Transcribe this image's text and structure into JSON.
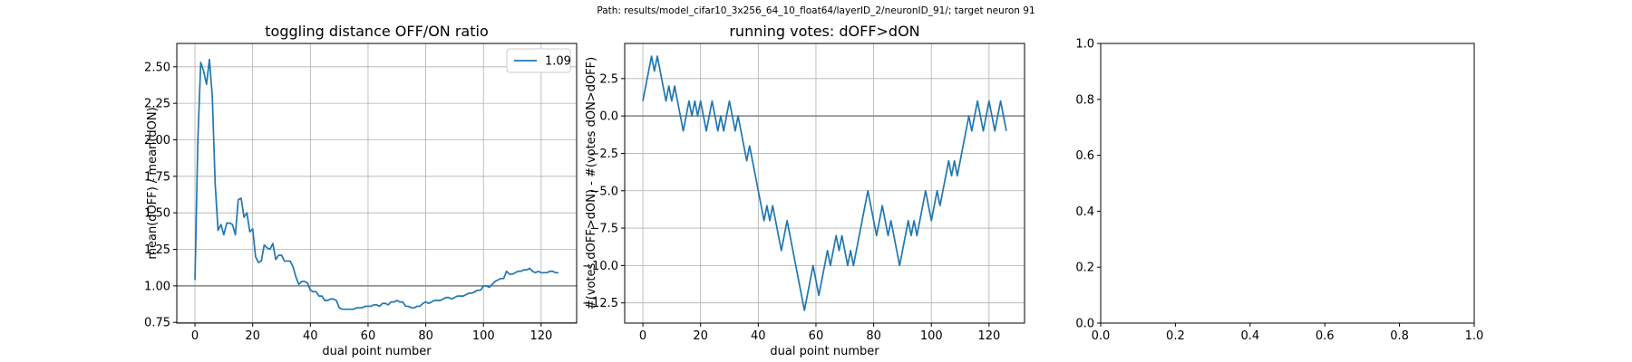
{
  "figure": {
    "suptitle": "Path: results/model_cifar10_3x256_64_10_float64/layerID_2/neuronID_91/; target neuron 91"
  },
  "colors": {
    "line": "#1f77b4",
    "refline": "#808080",
    "grid": "#b0b0b0"
  },
  "chart_data": [
    {
      "type": "line",
      "title": "toggling distance OFF/ON ratio",
      "xlabel": "dual point number",
      "ylabel": "mean(dOFF) / mean(dON)",
      "xlim": [
        -6.3,
        132.3
      ],
      "ylim": [
        0.745,
        2.66
      ],
      "xticks": [
        0,
        20,
        40,
        60,
        80,
        100,
        120
      ],
      "yticks": [
        0.75,
        1.0,
        1.25,
        1.5,
        1.75,
        2.0,
        2.25,
        2.5
      ],
      "ytick_labels": [
        "0.75",
        "1.00",
        "1.25",
        "1.50",
        "1.75",
        "2.00",
        "2.25",
        "2.50"
      ],
      "grid": true,
      "hline": 1.0,
      "legend": {
        "position": "top-right",
        "entries": [
          "1.09"
        ]
      },
      "series": [
        {
          "name": "1.09",
          "x": [
            0,
            1,
            2,
            3,
            4,
            5,
            6,
            7,
            8,
            9,
            10,
            11,
            12,
            13,
            14,
            15,
            16,
            17,
            18,
            19,
            20,
            21,
            22,
            23,
            24,
            25,
            26,
            27,
            28,
            29,
            30,
            31,
            32,
            33,
            34,
            35,
            36,
            37,
            38,
            39,
            40,
            41,
            42,
            43,
            44,
            45,
            46,
            47,
            48,
            49,
            50,
            51,
            52,
            53,
            54,
            55,
            56,
            57,
            58,
            59,
            60,
            61,
            62,
            63,
            64,
            65,
            66,
            67,
            68,
            69,
            70,
            71,
            72,
            73,
            74,
            75,
            76,
            77,
            78,
            79,
            80,
            81,
            82,
            83,
            84,
            85,
            86,
            87,
            88,
            89,
            90,
            91,
            92,
            93,
            94,
            95,
            96,
            97,
            98,
            99,
            100,
            101,
            102,
            103,
            104,
            105,
            106,
            107,
            108,
            109,
            110,
            111,
            112,
            113,
            114,
            115,
            116,
            117,
            118,
            119,
            120,
            121,
            122,
            123,
            124,
            125,
            126
          ],
          "y": [
            1.04,
            2.0,
            2.53,
            2.47,
            2.38,
            2.55,
            2.3,
            1.7,
            1.38,
            1.42,
            1.35,
            1.43,
            1.43,
            1.42,
            1.35,
            1.59,
            1.6,
            1.47,
            1.5,
            1.37,
            1.39,
            1.2,
            1.16,
            1.17,
            1.28,
            1.26,
            1.25,
            1.29,
            1.18,
            1.21,
            1.21,
            1.17,
            1.17,
            1.17,
            1.13,
            1.06,
            1.01,
            1.03,
            1.03,
            1.02,
            0.97,
            0.96,
            0.96,
            0.93,
            0.93,
            0.9,
            0.9,
            0.91,
            0.91,
            0.9,
            0.85,
            0.84,
            0.84,
            0.84,
            0.84,
            0.84,
            0.85,
            0.85,
            0.85,
            0.86,
            0.86,
            0.86,
            0.87,
            0.87,
            0.86,
            0.88,
            0.88,
            0.87,
            0.89,
            0.89,
            0.9,
            0.89,
            0.89,
            0.86,
            0.86,
            0.85,
            0.85,
            0.86,
            0.86,
            0.88,
            0.89,
            0.88,
            0.89,
            0.9,
            0.9,
            0.9,
            0.91,
            0.92,
            0.92,
            0.91,
            0.92,
            0.93,
            0.93,
            0.93,
            0.94,
            0.95,
            0.95,
            0.96,
            0.97,
            0.97,
            1.0,
            1.0,
            0.99,
            1.01,
            1.03,
            1.04,
            1.05,
            1.05,
            1.1,
            1.08,
            1.08,
            1.09,
            1.1,
            1.1,
            1.11,
            1.11,
            1.12,
            1.1,
            1.09,
            1.1,
            1.09,
            1.09,
            1.09,
            1.1,
            1.1,
            1.09,
            1.09
          ]
        }
      ]
    },
    {
      "type": "line",
      "title": "running votes: dOFF>dON",
      "xlabel": "dual point number",
      "ylabel": "#(votes dOFF>dON) - #(votes dON>dOFF)",
      "xlim": [
        -6.3,
        132.3
      ],
      "ylim": [
        -13.85,
        4.85
      ],
      "xticks": [
        0,
        20,
        40,
        60,
        80,
        100,
        120
      ],
      "yticks": [
        -12.5,
        -10.0,
        -7.5,
        -5.0,
        -2.5,
        0.0,
        2.5
      ],
      "ytick_labels": [
        "−12.5",
        "−10.0",
        "−7.5",
        "−5.0",
        "−2.5",
        "0.0",
        "2.5"
      ],
      "grid": true,
      "hline": 0,
      "series": [
        {
          "x": [
            0,
            1,
            2,
            3,
            4,
            5,
            6,
            7,
            8,
            9,
            10,
            11,
            12,
            13,
            14,
            15,
            16,
            17,
            18,
            19,
            20,
            21,
            22,
            23,
            24,
            25,
            26,
            27,
            28,
            29,
            30,
            31,
            32,
            33,
            34,
            35,
            36,
            37,
            38,
            39,
            40,
            41,
            42,
            43,
            44,
            45,
            46,
            47,
            48,
            49,
            50,
            51,
            52,
            53,
            54,
            55,
            56,
            57,
            58,
            59,
            60,
            61,
            62,
            63,
            64,
            65,
            66,
            67,
            68,
            69,
            70,
            71,
            72,
            73,
            74,
            75,
            76,
            77,
            78,
            79,
            80,
            81,
            82,
            83,
            84,
            85,
            86,
            87,
            88,
            89,
            90,
            91,
            92,
            93,
            94,
            95,
            96,
            97,
            98,
            99,
            100,
            101,
            102,
            103,
            104,
            105,
            106,
            107,
            108,
            109,
            110,
            111,
            112,
            113,
            114,
            115,
            116,
            117,
            118,
            119,
            120,
            121,
            122,
            123,
            124,
            125,
            126
          ],
          "y": [
            1,
            2,
            3,
            4,
            3,
            4,
            3,
            2,
            1,
            2,
            1,
            2,
            1,
            0,
            -1,
            0,
            1,
            0,
            1,
            0,
            1,
            0,
            -1,
            0,
            1,
            0,
            -1,
            0,
            -1,
            0,
            1,
            0,
            -1,
            0,
            -1,
            -2,
            -3,
            -2,
            -3,
            -4,
            -5,
            -6,
            -7,
            -6,
            -7,
            -6,
            -7,
            -8,
            -9,
            -8,
            -7,
            -8,
            -9,
            -10,
            -11,
            -12,
            -13,
            -12,
            -11,
            -10,
            -11,
            -12,
            -11,
            -10,
            -9,
            -10,
            -9,
            -8,
            -9,
            -8,
            -9,
            -10,
            -9,
            -10,
            -9,
            -8,
            -7,
            -6,
            -5,
            -6,
            -7,
            -8,
            -7,
            -6,
            -7,
            -8,
            -7,
            -8,
            -9,
            -10,
            -9,
            -8,
            -7,
            -8,
            -7,
            -8,
            -7,
            -6,
            -5,
            -6,
            -7,
            -6,
            -5,
            -6,
            -5,
            -4,
            -3,
            -4,
            -3,
            -4,
            -3,
            -2,
            -1,
            0,
            -1,
            0,
            1,
            0,
            -1,
            0,
            1,
            0,
            -1,
            0,
            1,
            0,
            -1
          ]
        }
      ]
    },
    {
      "type": "line",
      "title": "",
      "xlim": [
        0,
        1
      ],
      "ylim": [
        0,
        1
      ],
      "xticks": [
        0.0,
        0.2,
        0.4,
        0.6,
        0.8,
        1.0
      ],
      "yticks": [
        0.0,
        0.2,
        0.4,
        0.6,
        0.8,
        1.0
      ],
      "xtick_labels": [
        "0.0",
        "0.2",
        "0.4",
        "0.6",
        "0.8",
        "1.0"
      ],
      "ytick_labels": [
        "0.0",
        "0.2",
        "0.4",
        "0.6",
        "0.8",
        "1.0"
      ],
      "grid": false,
      "series": []
    }
  ]
}
